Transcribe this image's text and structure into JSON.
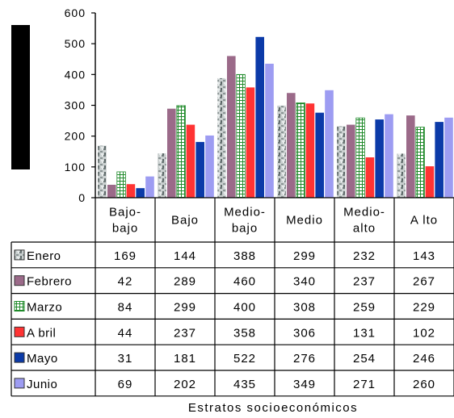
{
  "chart_data": {
    "type": "bar",
    "title": "",
    "xlabel": "Estratos socioeconómicos",
    "ylabel": "",
    "ylim": [
      0,
      600
    ],
    "yticks": [
      "0",
      "100",
      "200",
      "300",
      "400",
      "500",
      "600"
    ],
    "grid": false,
    "legend": "data-table",
    "categories": [
      [
        "Bajo-",
        "bajo"
      ],
      [
        "Bajo"
      ],
      [
        "Medio-",
        "bajo"
      ],
      [
        "Medio"
      ],
      [
        "Medio-",
        "alto"
      ],
      [
        "A lto"
      ]
    ],
    "series": [
      {
        "name": "Enero",
        "pattern": "marble",
        "color": "#9aa3a3",
        "values": [
          169,
          144,
          388,
          299,
          232,
          143
        ]
      },
      {
        "name": "Febrero",
        "pattern": "solid",
        "color": "#9b6a89",
        "values": [
          42,
          289,
          460,
          340,
          237,
          267
        ]
      },
      {
        "name": "Marzo",
        "pattern": "grid",
        "color": "#1f8a2a",
        "values": [
          84,
          299,
          400,
          308,
          259,
          229
        ]
      },
      {
        "name": "A bril",
        "pattern": "solid",
        "color": "#ff3333",
        "values": [
          44,
          237,
          358,
          306,
          131,
          102
        ]
      },
      {
        "name": "Mayo",
        "pattern": "solid",
        "color": "#0b3aa8",
        "values": [
          31,
          181,
          522,
          276,
          254,
          246
        ]
      },
      {
        "name": "Junio",
        "pattern": "solid",
        "color": "#9d9cf2",
        "values": [
          69,
          202,
          435,
          349,
          271,
          260
        ]
      }
    ]
  }
}
